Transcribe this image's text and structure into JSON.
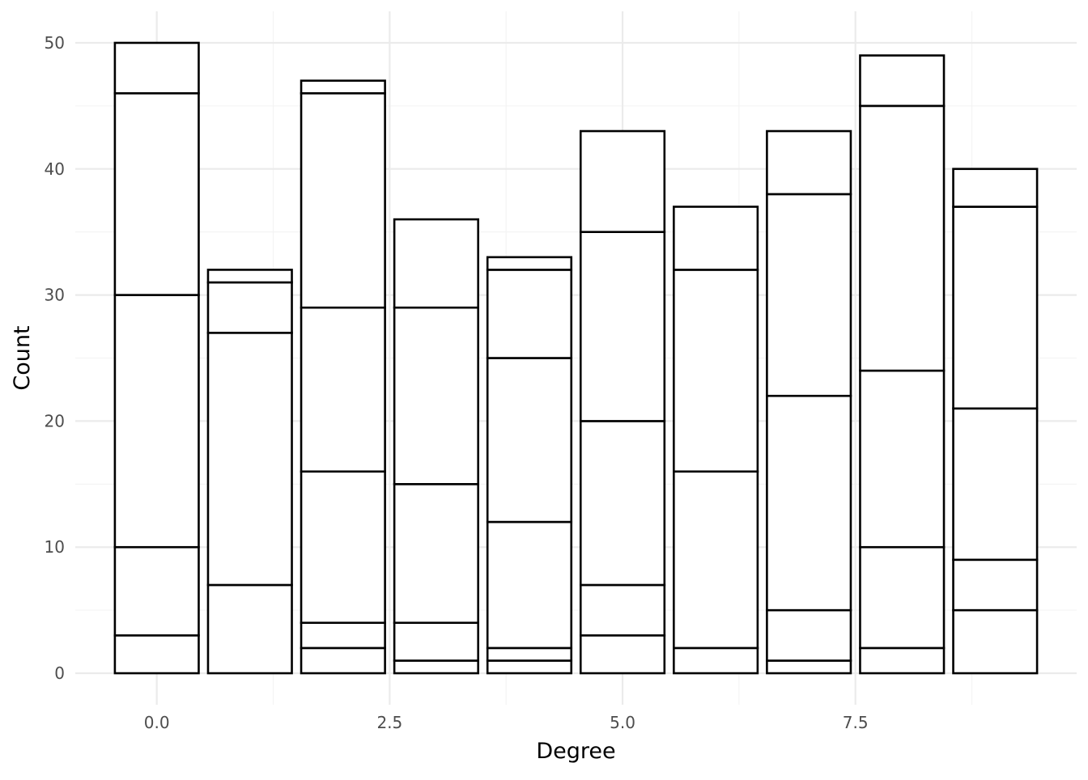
{
  "chart_data": {
    "type": "bar",
    "stacked": true,
    "x": [
      0,
      1,
      2,
      3,
      4,
      5,
      6,
      7,
      8,
      9
    ],
    "segment_boundaries": [
      [
        0,
        3,
        10,
        30,
        46,
        50
      ],
      [
        0,
        7,
        27,
        31,
        32
      ],
      [
        0,
        2,
        4,
        16,
        29,
        46,
        47
      ],
      [
        0,
        1,
        4,
        15,
        29,
        36
      ],
      [
        0,
        1,
        2,
        12,
        25,
        32,
        33
      ],
      [
        0,
        3,
        7,
        20,
        35,
        43
      ],
      [
        0,
        2,
        16,
        32,
        37
      ],
      [
        0,
        1,
        5,
        22,
        38,
        43
      ],
      [
        0,
        2,
        10,
        24,
        45,
        49
      ],
      [
        0,
        5,
        9,
        21,
        37,
        40
      ]
    ],
    "totals": [
      50,
      32,
      47,
      36,
      33,
      43,
      37,
      43,
      49,
      40
    ],
    "title": "",
    "xlabel": "Degree",
    "ylabel": "Count",
    "xlim": [
      -0.875,
      9.875
    ],
    "ylim": [
      -2.5,
      52.5
    ],
    "x_ticks": [
      0,
      2.5,
      5,
      7.5
    ],
    "x_tick_labels": [
      "0.0",
      "2.5",
      "5.0",
      "7.5"
    ],
    "y_ticks": [
      0,
      10,
      20,
      30,
      40,
      50
    ],
    "y_tick_labels": [
      "0",
      "10",
      "20",
      "30",
      "40",
      "50"
    ],
    "grid": true,
    "legend": "none",
    "colors": {
      "bar_fill": "#ffffff",
      "bar_outline": "#000000",
      "grid_major": "#ebebeb",
      "grid_minor": "#f3f3f3",
      "tick_text": "#4d4d4d",
      "title_text": "#000000"
    }
  }
}
